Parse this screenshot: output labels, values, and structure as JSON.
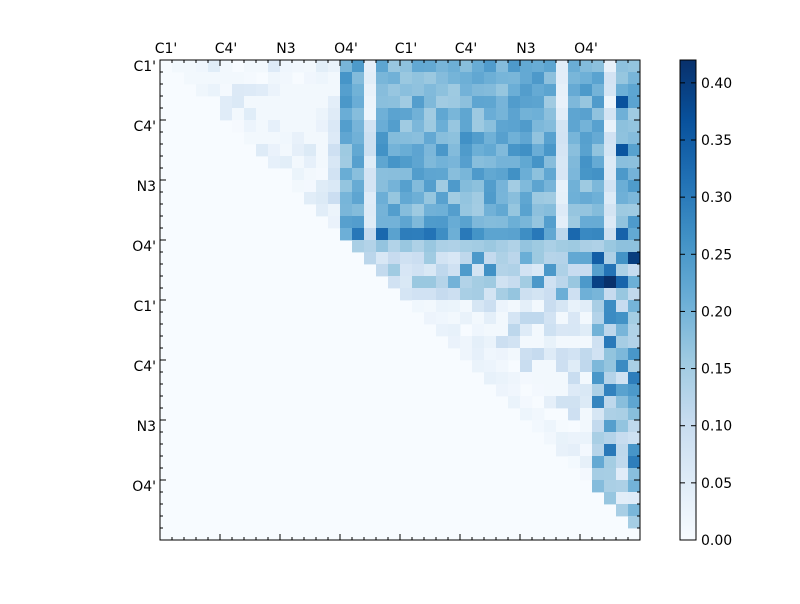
{
  "chart_data": {
    "type": "heatmap",
    "title": "",
    "xlabel": "",
    "ylabel": "",
    "rows": 40,
    "cols": 40,
    "top_tick_labels": [
      "C1'",
      "C4'",
      "N3",
      "O4'",
      "C1'",
      "C4'",
      "N3",
      "O4'"
    ],
    "left_tick_labels": [
      "C1'",
      "C4'",
      "N3",
      "O4'",
      "C1'",
      "C4'",
      "N3",
      "O4'"
    ],
    "colorbar": {
      "min": 0.0,
      "max": 0.42,
      "ticks": [
        "0.00",
        "0.05",
        "0.10",
        "0.15",
        "0.20",
        "0.25",
        "0.30",
        "0.35",
        "0.40"
      ],
      "colormap": "Blues",
      "stops": [
        "#f7fbff",
        "#deebf7",
        "#c6dbef",
        "#9ecae1",
        "#6baed6",
        "#4292c6",
        "#2171b5",
        "#08519c",
        "#08306b"
      ]
    },
    "description_note": "",
    "values": []
  }
}
